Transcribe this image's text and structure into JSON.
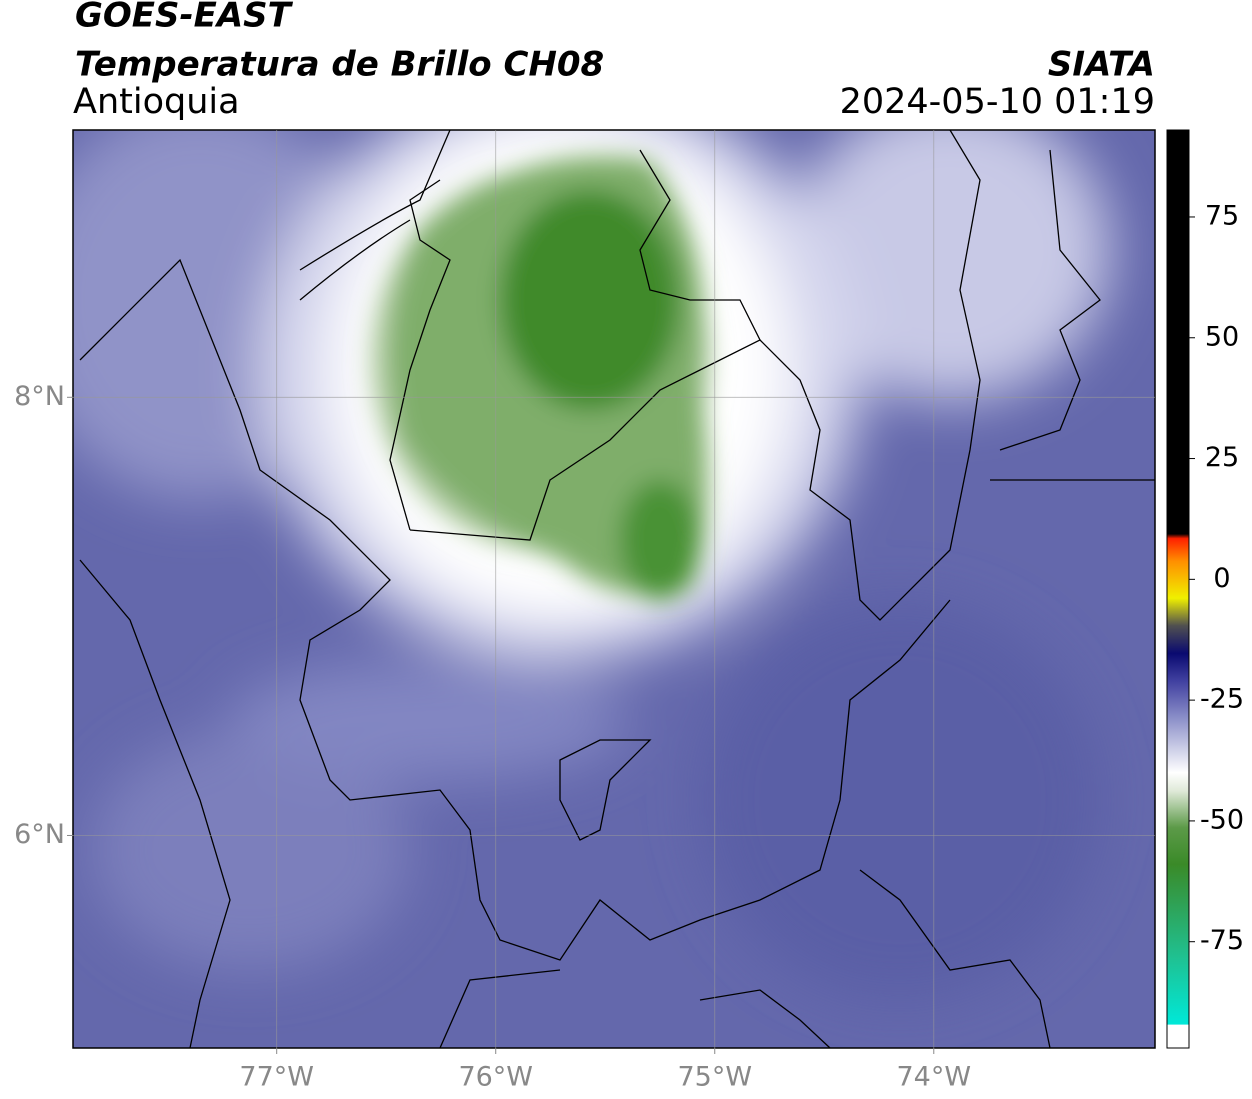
{
  "header": {
    "satellite": "GOES-EAST",
    "product": "Temperatura de Brillo CH08",
    "region": "Antioquia",
    "source": "SIATA",
    "datetime": "2024-05-10 01:19"
  },
  "map": {
    "xlim": [
      -77.93,
      -72.99
    ],
    "ylim": [
      5.03,
      9.22
    ],
    "xticks": [
      {
        "value": -77,
        "label": "77°W"
      },
      {
        "value": -76,
        "label": "76°W"
      },
      {
        "value": -75,
        "label": "75°W"
      },
      {
        "value": -74,
        "label": "74°W"
      }
    ],
    "yticks": [
      {
        "value": 6,
        "label": "6°N"
      },
      {
        "value": 8,
        "label": "8°N"
      }
    ],
    "grid": true
  },
  "colorbar": {
    "lim": [
      -97,
      93
    ],
    "ticks": [
      -75,
      -50,
      -25,
      0,
      25,
      50,
      75
    ]
  }
}
